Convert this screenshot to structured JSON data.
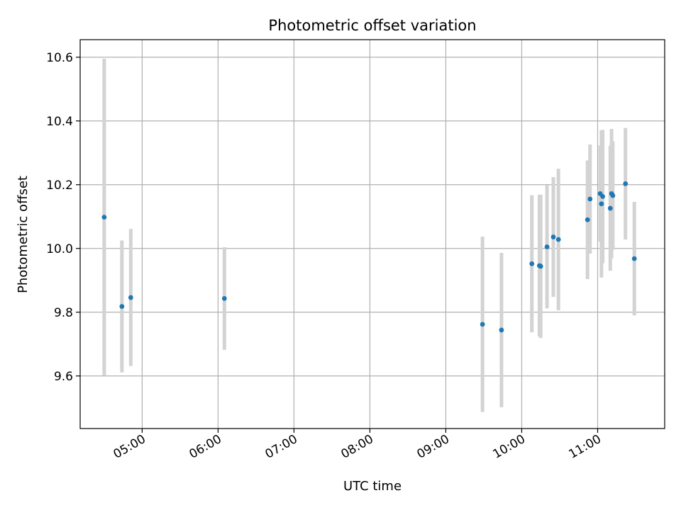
{
  "chart_data": {
    "type": "scatter",
    "title": "Photometric offset variation",
    "xlabel": "UTC time",
    "ylabel": "Photometric offset",
    "x_axis": {
      "kind": "time",
      "range": [
        "04:11",
        "11:53"
      ],
      "ticks": [
        "05:00",
        "06:00",
        "07:00",
        "08:00",
        "09:00",
        "10:00",
        "11:00"
      ]
    },
    "y_axis": {
      "range": [
        9.435,
        10.655
      ],
      "ticks": [
        9.6,
        9.8,
        10.0,
        10.2,
        10.4,
        10.6
      ],
      "tick_labels": [
        "9.6",
        "9.8",
        "10.0",
        "10.2",
        "10.4",
        "10.6"
      ]
    },
    "grid": true,
    "colors": {
      "point": "#1f77b4",
      "errorbar": "#d3d3d3",
      "grid": "#b0b0b0",
      "axes": "#000000"
    },
    "points": [
      {
        "x": "04:30",
        "y": 10.098,
        "err": 0.497
      },
      {
        "x": "04:44",
        "y": 9.818,
        "err": 0.207
      },
      {
        "x": "04:51",
        "y": 9.846,
        "err": 0.215
      },
      {
        "x": "06:05",
        "y": 9.843,
        "err": 0.161
      },
      {
        "x": "09:29",
        "y": 9.762,
        "err": 0.275
      },
      {
        "x": "09:44",
        "y": 9.744,
        "err": 0.242
      },
      {
        "x": "10:08",
        "y": 9.952,
        "err": 0.215
      },
      {
        "x": "10:14",
        "y": 9.946,
        "err": 0.222
      },
      {
        "x": "10:15",
        "y": 9.944,
        "err": 0.225
      },
      {
        "x": "10:20",
        "y": 10.005,
        "err": 0.193
      },
      {
        "x": "10:25",
        "y": 10.036,
        "err": 0.188
      },
      {
        "x": "10:29",
        "y": 10.028,
        "err": 0.222
      },
      {
        "x": "10:52",
        "y": 10.09,
        "err": 0.186
      },
      {
        "x": "10:54",
        "y": 10.155,
        "err": 0.171
      },
      {
        "x": "11:02",
        "y": 10.172,
        "err": 0.151
      },
      {
        "x": "11:03",
        "y": 10.14,
        "err": 0.231
      },
      {
        "x": "11:04",
        "y": 10.163,
        "err": 0.209
      },
      {
        "x": "11:10",
        "y": 10.126,
        "err": 0.196
      },
      {
        "x": "11:11",
        "y": 10.172,
        "err": 0.203
      },
      {
        "x": "11:12",
        "y": 10.166,
        "err": 0.17
      },
      {
        "x": "11:22",
        "y": 10.203,
        "err": 0.175
      },
      {
        "x": "11:29",
        "y": 9.968,
        "err": 0.178
      }
    ]
  }
}
